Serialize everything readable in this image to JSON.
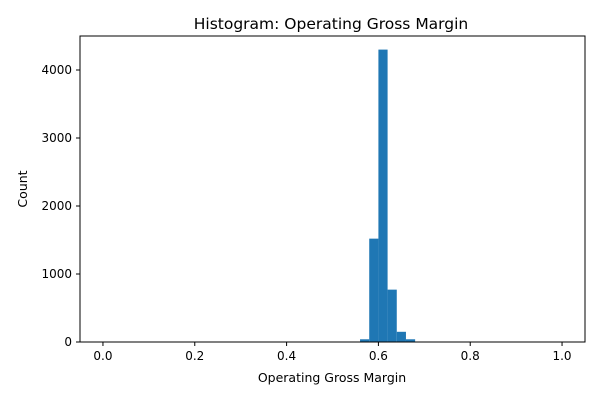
{
  "chart_data": {
    "type": "bar",
    "title": "Histogram:  Operating Gross Margin",
    "xlabel": "Operating Gross Margin",
    "ylabel": "Count",
    "xlim": [
      -0.05,
      1.05
    ],
    "ylim": [
      0,
      4500
    ],
    "xticks": [
      0.0,
      0.2,
      0.4,
      0.6,
      0.8,
      1.0
    ],
    "xtick_labels": [
      "0.0",
      "0.2",
      "0.4",
      "0.6",
      "0.8",
      "1.0"
    ],
    "yticks": [
      0,
      1000,
      2000,
      3000,
      4000
    ],
    "ytick_labels": [
      "0",
      "1000",
      "2000",
      "3000",
      "4000"
    ],
    "bin_width": 0.02,
    "bins_start": [
      0.54,
      0.56,
      0.58,
      0.6,
      0.62,
      0.64,
      0.66
    ],
    "values": [
      3,
      40,
      1520,
      4300,
      770,
      150,
      40
    ],
    "bar_color": "#1f77b4",
    "grid": false,
    "legend": "none"
  }
}
